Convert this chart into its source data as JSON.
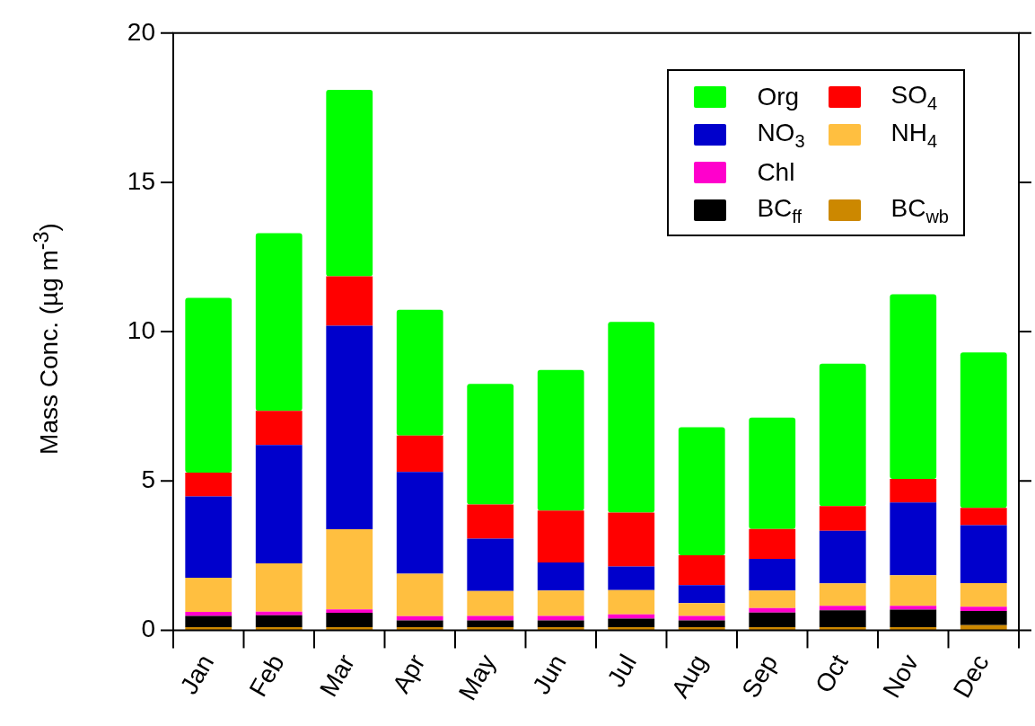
{
  "chart_data": {
    "type": "bar",
    "stacked": true,
    "ylabel": "Mass Conc. (µg m$^{-3}$)",
    "categories": [
      "Jan",
      "Feb",
      "Mar",
      "Apr",
      "May",
      "Jun",
      "Jul",
      "Aug",
      "Sep",
      "Oct",
      "Nov",
      "Dec"
    ],
    "ylim": [
      0,
      20
    ],
    "yticks": [
      0,
      5,
      10,
      15,
      20
    ],
    "grid": false,
    "legend": "top right",
    "series": [
      {
        "name": "BC$_{wb}$",
        "color": "#cc8800",
        "values": [
          0.1,
          0.1,
          0.1,
          0.1,
          0.1,
          0.1,
          0.1,
          0.1,
          0.1,
          0.1,
          0.1,
          0.17
        ]
      },
      {
        "name": "BC$_{ff}$",
        "color": "#000000",
        "values": [
          0.38,
          0.4,
          0.48,
          0.23,
          0.23,
          0.23,
          0.29,
          0.23,
          0.49,
          0.57,
          0.59,
          0.47
        ]
      },
      {
        "name": "Chl",
        "color": "#ff00cc",
        "values": [
          0.13,
          0.12,
          0.12,
          0.14,
          0.15,
          0.15,
          0.14,
          0.15,
          0.15,
          0.15,
          0.13,
          0.15
        ]
      },
      {
        "name": "NH$_{4}$",
        "color": "#ffbf40",
        "values": [
          1.15,
          1.62,
          2.68,
          1.42,
          0.83,
          0.85,
          0.81,
          0.43,
          0.59,
          0.75,
          1.02,
          0.79
        ]
      },
      {
        "name": "NO$_{3}$",
        "color": "#0000cc",
        "values": [
          2.72,
          3.96,
          6.82,
          3.41,
          1.76,
          0.94,
          0.79,
          0.6,
          1.06,
          1.76,
          2.44,
          1.94
        ]
      },
      {
        "name": "SO$_{4}$",
        "color": "#ff0000",
        "values": [
          0.8,
          1.15,
          1.65,
          1.22,
          1.14,
          1.74,
          1.81,
          1.0,
          1.0,
          0.83,
          0.79,
          0.58
        ]
      },
      {
        "name": "Org",
        "color": "#00ff00",
        "values": [
          5.85,
          5.95,
          6.25,
          4.21,
          4.04,
          4.71,
          6.39,
          4.29,
          3.73,
          4.77,
          6.18,
          5.2
        ]
      }
    ]
  }
}
